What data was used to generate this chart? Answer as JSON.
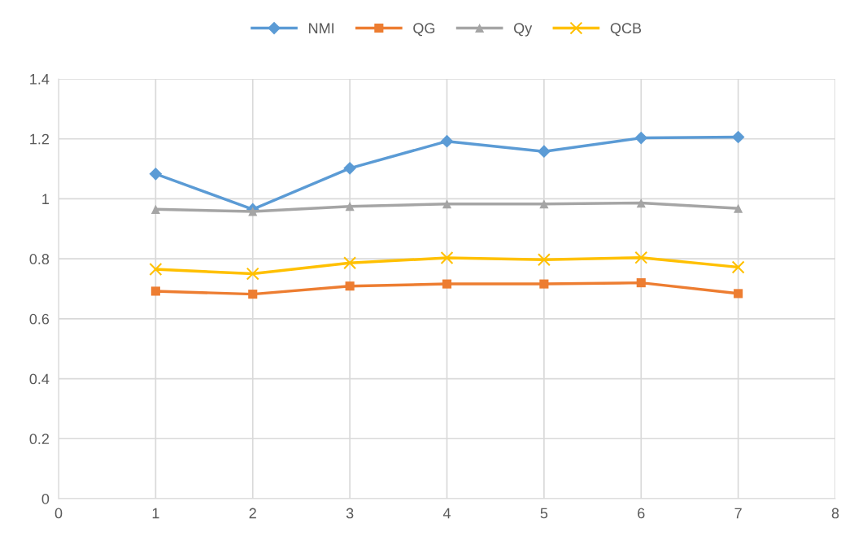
{
  "chart_data": {
    "type": "line",
    "x": [
      1,
      2,
      3,
      4,
      5,
      6,
      7
    ],
    "series": [
      {
        "name": "NMI",
        "color": "#5b9bd5",
        "marker": "diamond",
        "values": [
          1.083,
          0.965,
          1.102,
          1.192,
          1.158,
          1.203,
          1.206
        ]
      },
      {
        "name": "QG",
        "color": "#ed7d31",
        "marker": "square",
        "values": [
          0.692,
          0.682,
          0.709,
          0.716,
          0.716,
          0.72,
          0.684
        ]
      },
      {
        "name": "Qy",
        "color": "#a5a5a5",
        "marker": "triangle",
        "values": [
          0.965,
          0.958,
          0.975,
          0.983,
          0.983,
          0.986,
          0.968
        ]
      },
      {
        "name": "QCB",
        "color": "#ffc000",
        "marker": "cross",
        "values": [
          0.765,
          0.75,
          0.786,
          0.803,
          0.797,
          0.804,
          0.772
        ]
      }
    ],
    "xlim": [
      0,
      8
    ],
    "xticks": [
      0,
      1,
      2,
      3,
      4,
      5,
      6,
      7,
      8
    ],
    "ylim": [
      0,
      1.4
    ],
    "yticks": [
      0,
      0.2,
      0.4,
      0.6,
      0.8,
      1,
      1.2,
      1.4
    ],
    "grid": true,
    "legend": "top",
    "line_style": "solid"
  }
}
